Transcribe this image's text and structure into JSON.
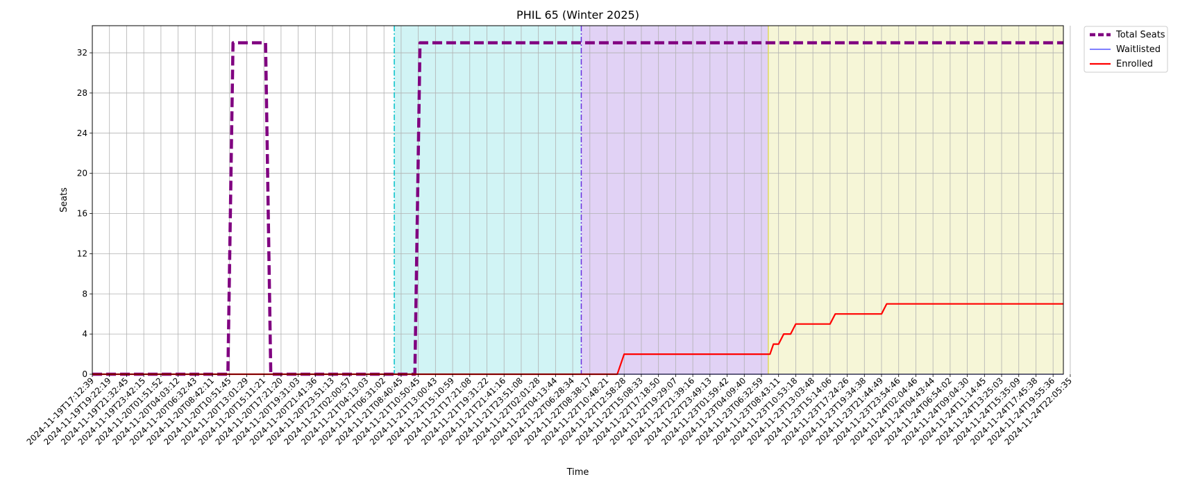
{
  "chart_data": {
    "type": "line",
    "title": "PHIL 65 (Winter 2025)",
    "xlabel": "Time",
    "ylabel": "Seats",
    "ylim": [
      0,
      34.7
    ],
    "yticks": [
      0,
      4,
      8,
      12,
      16,
      20,
      24,
      28,
      32
    ],
    "grid": true,
    "legend_placement": "outside-top-right",
    "xtick_labels": [
      "2024-11-19T17:12:39",
      "2024-11-19T19:22:19",
      "2024-11-19T21:32:45",
      "2024-11-19T23:42:15",
      "2024-11-20T01:51:52",
      "2024-11-20T04:03:12",
      "2024-11-20T06:32:43",
      "2024-11-20T08:42:11",
      "2024-11-20T10:51:45",
      "2024-11-20T13:01:29",
      "2024-11-20T15:11:21",
      "2024-11-20T17:21:20",
      "2024-11-20T19:31:03",
      "2024-11-20T21:41:36",
      "2024-11-20T23:51:13",
      "2024-11-21T02:00:57",
      "2024-11-21T04:13:03",
      "2024-11-21T06:31:02",
      "2024-11-21T08:40:45",
      "2024-11-21T10:50:45",
      "2024-11-21T13:00:43",
      "2024-11-21T15:10:59",
      "2024-11-21T17:21:08",
      "2024-11-21T19:31:22",
      "2024-11-21T21:41:16",
      "2024-11-21T23:51:08",
      "2024-11-22T02:01:28",
      "2024-11-22T04:13:44",
      "2024-11-22T06:28:34",
      "2024-11-22T08:38:17",
      "2024-11-22T10:48:21",
      "2024-11-22T12:58:28",
      "2024-11-22T15:08:33",
      "2024-11-22T17:18:50",
      "2024-11-22T19:29:07",
      "2024-11-22T21:39:16",
      "2024-11-22T23:49:13",
      "2024-11-23T01:59:42",
      "2024-11-23T04:09:40",
      "2024-11-23T06:32:59",
      "2024-11-23T08:43:11",
      "2024-11-23T10:53:18",
      "2024-11-23T13:03:48",
      "2024-11-23T15:14:06",
      "2024-11-23T17:24:26",
      "2024-11-23T19:34:38",
      "2024-11-23T21:44:49",
      "2024-11-23T23:54:46",
      "2024-11-24T02:04:46",
      "2024-11-24T04:43:44",
      "2024-11-24T06:54:02",
      "2024-11-24T09:04:30",
      "2024-11-24T11:14:45",
      "2024-11-24T13:25:03",
      "2024-11-24T15:35:09",
      "2024-11-24T17:45:38",
      "2024-11-24T19:55:36",
      "2024-11-24T22:05:35"
    ],
    "x_index_max": 56.6,
    "series": [
      {
        "name": "Total Seats",
        "color": "#800080",
        "style": "dashed",
        "points": [
          [
            0,
            0
          ],
          [
            7.9,
            0
          ],
          [
            8.2,
            33
          ],
          [
            10.1,
            33
          ],
          [
            10.4,
            0
          ],
          [
            18.8,
            0
          ],
          [
            19.1,
            33
          ],
          [
            56.6,
            33
          ]
        ]
      },
      {
        "name": "Waitlisted",
        "color": "#3333ff",
        "style": "solid",
        "points": [
          [
            0,
            0
          ],
          [
            56.6,
            0
          ]
        ]
      },
      {
        "name": "Enrolled",
        "color": "#ff0000",
        "style": "solid",
        "points": [
          [
            0,
            0
          ],
          [
            30.6,
            0
          ],
          [
            31,
            2
          ],
          [
            39.2,
            2
          ],
          [
            39.5,
            2
          ],
          [
            39.7,
            3
          ],
          [
            40,
            3
          ],
          [
            40.3,
            4
          ],
          [
            40.7,
            4
          ],
          [
            41,
            5
          ],
          [
            43,
            5
          ],
          [
            43.3,
            6
          ],
          [
            46,
            6
          ],
          [
            46.3,
            7
          ],
          [
            56.6,
            7
          ]
        ]
      }
    ],
    "regions": [
      {
        "from": 17.6,
        "to": 28.5,
        "color": "#00c0c8",
        "opacity": 0.18
      },
      {
        "from": 28.5,
        "to": 39.4,
        "color": "#8a50d8",
        "opacity": 0.26
      },
      {
        "from": 39.4,
        "to": 56.6,
        "color": "#e4e48c",
        "opacity": 0.35
      }
    ],
    "vlines": [
      {
        "x": 17.6,
        "color": "#00c0c8",
        "style": "dashdot"
      },
      {
        "x": 28.5,
        "color": "#6a2ee0",
        "style": "dashdot"
      },
      {
        "x": 39.4,
        "color": "#e0d860",
        "style": "solid"
      }
    ]
  }
}
